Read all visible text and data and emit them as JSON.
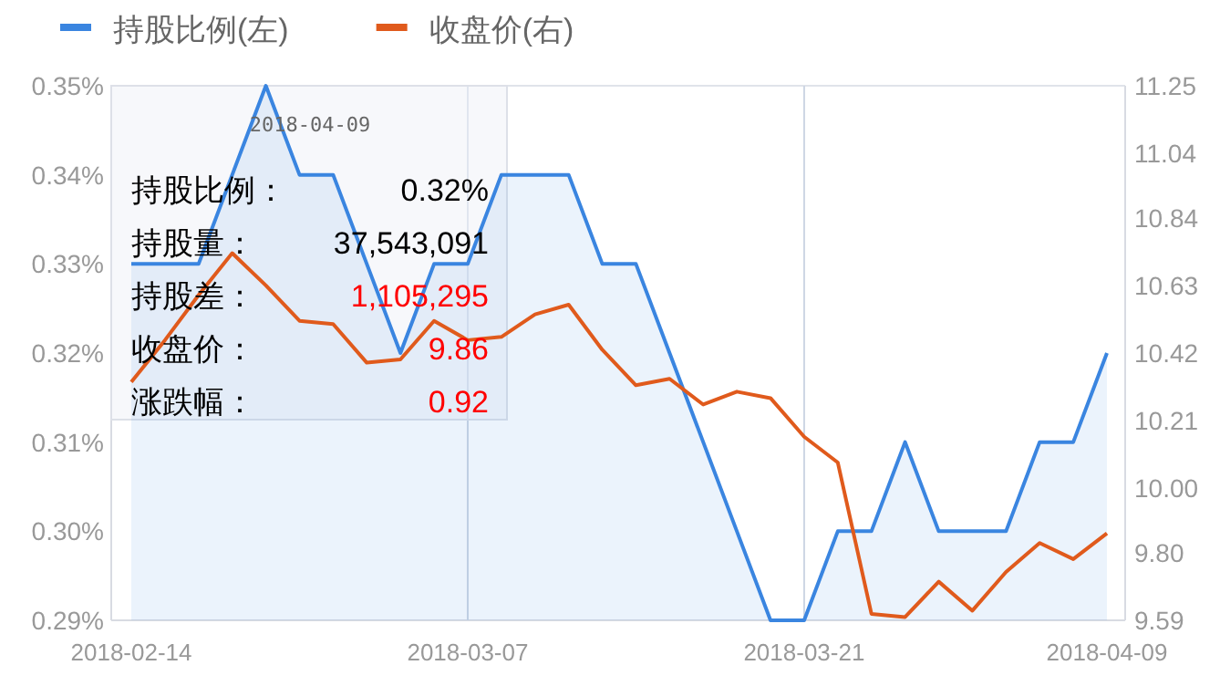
{
  "chart_data": {
    "type": "line",
    "categories": [
      "2018-02-14",
      null,
      null,
      null,
      null,
      null,
      null,
      null,
      null,
      null,
      "2018-03-07",
      null,
      null,
      null,
      null,
      null,
      null,
      null,
      null,
      null,
      "2018-03-21",
      null,
      null,
      null,
      null,
      null,
      null,
      null,
      null,
      "2018-04-09"
    ],
    "series": [
      {
        "name": "持股比例(左)",
        "color": "#3a85e0",
        "type": "area",
        "values": [
          0.33,
          0.33,
          0.33,
          0.34,
          0.35,
          0.34,
          0.34,
          0.33,
          0.32,
          0.33,
          0.33,
          0.34,
          0.34,
          0.34,
          0.33,
          0.33,
          0.32,
          0.31,
          0.3,
          0.29,
          0.29,
          0.3,
          0.3,
          0.31,
          0.3,
          0.3,
          0.3,
          0.31,
          0.31,
          0.32
        ]
      },
      {
        "name": "收盘价(右)",
        "color": "#e05a1c",
        "type": "line",
        "axis": "y2",
        "values": [
          10.33,
          10.46,
          10.6,
          10.73,
          10.63,
          10.52,
          10.51,
          10.39,
          10.4,
          10.52,
          10.46,
          10.47,
          10.54,
          10.57,
          10.43,
          10.32,
          10.34,
          10.26,
          10.3,
          10.28,
          10.16,
          10.08,
          9.61,
          9.6,
          9.71,
          9.62,
          9.74,
          9.83,
          9.78,
          9.86
        ]
      }
    ],
    "ylim": [
      0.29,
      0.35
    ],
    "yticks": [
      {
        "value": 0.29,
        "label": "0.29%"
      },
      {
        "value": 0.3,
        "label": "0.30%"
      },
      {
        "value": 0.31,
        "label": "0.31%"
      },
      {
        "value": 0.32,
        "label": "0.32%"
      },
      {
        "value": 0.33,
        "label": "0.33%"
      },
      {
        "value": 0.34,
        "label": "0.34%"
      },
      {
        "value": 0.35,
        "label": "0.35%"
      }
    ],
    "y2lim": [
      9.59,
      11.25
    ],
    "y2ticks": [
      9.59,
      {
        "value": 9.8,
        "label": "9.80"
      },
      {
        "value": 10,
        "label": "10.00"
      },
      10.21,
      10.42,
      10.63,
      10.84,
      11.04,
      11.25
    ],
    "grid": "x",
    "legend": "top left",
    "annotations": [
      "2018-04-09",
      "持股比例：",
      "0.32%",
      "持股量：",
      "37,543,091",
      "持股差：",
      "1,105,295",
      "收盘价：",
      "9.86",
      "涨跌幅：",
      "0.92"
    ]
  }
}
